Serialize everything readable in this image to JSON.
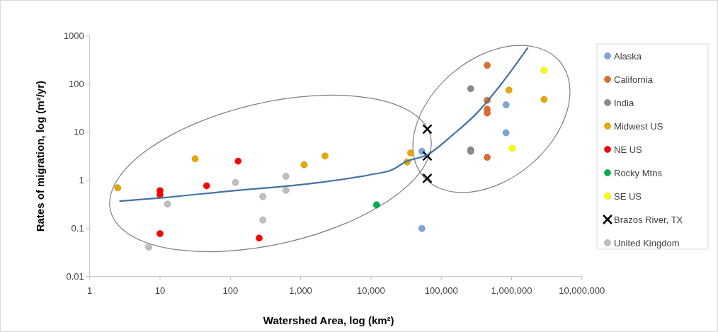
{
  "chart_data": {
    "type": "scatter",
    "xlabel": "Watershed Area, log (km²)",
    "ylabel": "Rates of migration, log (m²/yr)",
    "log": "xy",
    "grid": false,
    "legend": "right",
    "marker": "circle",
    "xlim": [
      1,
      10000000
    ],
    "ylim": [
      0.01,
      1000
    ],
    "xticks": [
      1,
      10,
      100,
      {
        "value": 1000,
        "label": "1,000"
      },
      {
        "value": 10000,
        "label": "10,000"
      },
      {
        "value": 100000,
        "label": "100,000"
      },
      {
        "value": 1000000,
        "label": "1,000,000"
      },
      {
        "value": 10000000,
        "label": "10,000,000"
      }
    ],
    "yticks": [
      0.01,
      0.1,
      1,
      10,
      100,
      1000
    ],
    "series": [
      {
        "name": "Alaska",
        "color": "#7ea6dc",
        "x": [
          53000,
          53000,
          834000,
          834000
        ],
        "values": [
          4.0,
          0.1,
          37,
          9.7
        ]
      },
      {
        "name": "California",
        "color": "#dc6e2e",
        "x": [
          450000,
          450000,
          450000,
          450000,
          450000
        ],
        "values": [
          244,
          46,
          30,
          25,
          3.0
        ]
      },
      {
        "name": "India",
        "color": "#8c8c8c",
        "x": [
          262000,
          262000,
          262000
        ],
        "values": [
          80,
          4.3,
          4.0
        ]
      },
      {
        "name": "Midwest US",
        "color": "#e6a800",
        "x": [
          2.5,
          31.6,
          1120,
          2220,
          36700,
          32700,
          916000,
          2900000
        ],
        "values": [
          0.7,
          2.8,
          2.1,
          3.2,
          3.7,
          2.4,
          75,
          48
        ]
      },
      {
        "name": "NE US",
        "color": "#ff0000",
        "x": [
          10,
          10,
          10,
          46,
          129,
          257
        ],
        "values": [
          0.61,
          0.5,
          0.078,
          0.77,
          2.5,
          0.063
        ]
      },
      {
        "name": "Rocky Mtns",
        "color": "#00b050",
        "x": [
          12000
        ],
        "values": [
          0.31
        ]
      },
      {
        "name": "SE US",
        "color": "#ffff00",
        "x": [
          1020000,
          2900000
        ],
        "values": [
          4.6,
          193
        ]
      },
      {
        "name": "Brazos River, TX",
        "color": "#000000",
        "marker": "cross",
        "x": [
          63300,
          63300,
          63300
        ],
        "values": [
          11.6,
          3.2,
          1.1
        ]
      },
      {
        "name": "United Kingdom",
        "color": "#bfbfbf",
        "x": [
          12.8,
          6.9,
          118,
          290,
          290,
          617,
          617
        ],
        "values": [
          0.32,
          0.041,
          0.9,
          0.46,
          0.15,
          1.21,
          0.62
        ]
      },
      {
        "type": "line",
        "color": "#4472a0",
        "marker": "none",
        "x": [
          2.7,
          10,
          100,
          1000,
          1430,
          9860,
          19800,
          31500,
          63300,
          147000,
          320000,
          693000,
          1690000
        ],
        "values": [
          0.37,
          0.43,
          0.6,
          0.81,
          0.86,
          1.31,
          1.64,
          2.44,
          3.4,
          8.9,
          24.8,
          95,
          560
        ]
      }
    ]
  }
}
